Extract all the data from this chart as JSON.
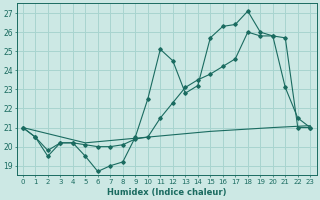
{
  "xlabel": "Humidex (Indice chaleur)",
  "bg_color": "#cce8e4",
  "grid_color": "#a8d4cf",
  "line_color": "#1a6b60",
  "xlim": [
    -0.5,
    23.5
  ],
  "ylim": [
    18.5,
    27.5
  ],
  "xticks": [
    0,
    1,
    2,
    3,
    4,
    5,
    6,
    7,
    8,
    9,
    10,
    11,
    12,
    13,
    14,
    15,
    16,
    17,
    18,
    19,
    20,
    21,
    22,
    23
  ],
  "yticks": [
    19,
    20,
    21,
    22,
    23,
    24,
    25,
    26,
    27
  ],
  "series1_x": [
    0,
    1,
    2,
    3,
    4,
    5,
    6,
    7,
    8,
    9,
    10,
    11,
    12,
    13,
    14,
    15,
    16,
    17,
    18,
    19,
    20,
    21,
    22,
    23
  ],
  "series1_y": [
    21.0,
    20.5,
    19.5,
    20.2,
    20.2,
    19.5,
    18.7,
    19.0,
    19.2,
    20.5,
    22.5,
    25.1,
    24.5,
    22.8,
    23.2,
    25.7,
    26.3,
    26.4,
    27.1,
    26.0,
    25.8,
    23.1,
    21.5,
    21.0
  ],
  "series2_x": [
    0,
    1,
    2,
    3,
    4,
    5,
    6,
    7,
    8,
    9,
    10,
    11,
    12,
    13,
    14,
    15,
    16,
    17,
    18,
    19,
    20,
    21,
    22,
    23
  ],
  "series2_y": [
    21.0,
    20.5,
    19.8,
    20.2,
    20.2,
    20.1,
    20.0,
    20.0,
    20.1,
    20.4,
    20.5,
    21.5,
    22.3,
    23.1,
    23.5,
    23.8,
    24.2,
    24.6,
    26.0,
    25.8,
    25.8,
    25.7,
    21.0,
    21.0
  ],
  "series3_x": [
    0,
    5,
    10,
    15,
    20,
    23
  ],
  "series3_y": [
    21.0,
    20.2,
    20.5,
    20.8,
    21.0,
    21.1
  ]
}
